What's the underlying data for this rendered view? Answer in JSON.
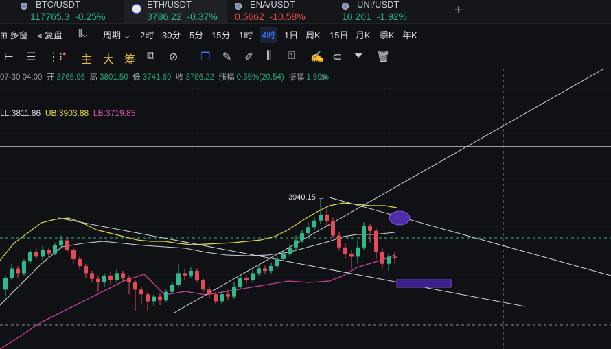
{
  "tabs": [
    {
      "pair": "BTC/USDT",
      "price": "117765.3",
      "change": "-0.25%",
      "dir": "up"
    },
    {
      "pair": "ETH/USDT",
      "price": "3786.22",
      "change": "-0.37%",
      "dir": "up"
    },
    {
      "pair": "ENA/USDT",
      "price": "0.5662",
      "change": "-10.58%",
      "dir": "down"
    },
    {
      "pair": "UNI/USDT",
      "price": "10.261",
      "change": "-1.92%",
      "dir": "up"
    }
  ],
  "add_tab": "+",
  "toolbar": {
    "multi_window": "多窗",
    "replay": "复盘",
    "period": "周期",
    "intervals": [
      "2时",
      "30分",
      "5分",
      "15分",
      "1时",
      "4时",
      "1日",
      "周K",
      "15日",
      "月K",
      "季K",
      "年K"
    ],
    "active_interval": "4时"
  },
  "tools": {
    "main": "主",
    "big": "大",
    "chip": "筹"
  },
  "ohlc": {
    "time": "07-30 04:00",
    "open_label": "开",
    "open": "3765.96",
    "high_label": "高",
    "high": "3801.50",
    "low_label": "低",
    "low": "3741.69",
    "close_label": "收",
    "close": "3786.22",
    "change_label": "涨幅",
    "change": "0.55%(20.54)",
    "amp_label": "振幅",
    "amp": "1.59%"
  },
  "boll": {
    "mid": "LL:3811.86",
    "ub": "UB:3903.88",
    "lb": "LB:3719.85"
  },
  "chart_data": {
    "type": "candlestick",
    "high_marker": "3940.15 →",
    "candles": [
      [
        3745,
        3770,
        3730,
        3775
      ],
      [
        3770,
        3790,
        3765,
        3800
      ],
      [
        3790,
        3780,
        3770,
        3795
      ],
      [
        3780,
        3805,
        3775,
        3810
      ],
      [
        3805,
        3825,
        3800,
        3830
      ],
      [
        3825,
        3815,
        3810,
        3832
      ],
      [
        3815,
        3830,
        3808,
        3838
      ],
      [
        3830,
        3822,
        3815,
        3835
      ],
      [
        3822,
        3840,
        3818,
        3845
      ],
      [
        3840,
        3850,
        3832,
        3860
      ],
      [
        3850,
        3830,
        3825,
        3855
      ],
      [
        3830,
        3810,
        3800,
        3835
      ],
      [
        3810,
        3795,
        3788,
        3815
      ],
      [
        3795,
        3780,
        3770,
        3800
      ],
      [
        3780,
        3768,
        3760,
        3785
      ],
      [
        3768,
        3760,
        3740,
        3775
      ],
      [
        3760,
        3775,
        3750,
        3780
      ],
      [
        3775,
        3765,
        3755,
        3782
      ],
      [
        3765,
        3780,
        3760,
        3788
      ],
      [
        3780,
        3770,
        3762,
        3785
      ],
      [
        3770,
        3760,
        3735,
        3775
      ],
      [
        3760,
        3745,
        3700,
        3765
      ],
      [
        3745,
        3735,
        3715,
        3750
      ],
      [
        3735,
        3720,
        3700,
        3740
      ],
      [
        3720,
        3730,
        3710,
        3735
      ],
      [
        3730,
        3722,
        3712,
        3738
      ],
      [
        3722,
        3740,
        3718,
        3745
      ],
      [
        3740,
        3755,
        3735,
        3762
      ],
      [
        3755,
        3780,
        3750,
        3800
      ],
      [
        3780,
        3775,
        3765,
        3790
      ],
      [
        3775,
        3785,
        3770,
        3792
      ],
      [
        3785,
        3765,
        3760,
        3790
      ],
      [
        3765,
        3745,
        3740,
        3770
      ],
      [
        3745,
        3735,
        3728,
        3750
      ],
      [
        3735,
        3720,
        3715,
        3740
      ],
      [
        3720,
        3735,
        3715,
        3742
      ],
      [
        3735,
        3730,
        3722,
        3745
      ],
      [
        3730,
        3750,
        3725,
        3760
      ],
      [
        3750,
        3770,
        3745,
        3778
      ],
      [
        3770,
        3765,
        3758,
        3776
      ],
      [
        3765,
        3780,
        3760,
        3790
      ],
      [
        3780,
        3790,
        3775,
        3798
      ],
      [
        3790,
        3785,
        3778,
        3796
      ],
      [
        3785,
        3795,
        3780,
        3802
      ],
      [
        3795,
        3810,
        3790,
        3815
      ],
      [
        3810,
        3820,
        3805,
        3830
      ],
      [
        3820,
        3835,
        3815,
        3842
      ],
      [
        3835,
        3850,
        3830,
        3860
      ],
      [
        3850,
        3865,
        3845,
        3872
      ],
      [
        3865,
        3878,
        3860,
        3888
      ],
      [
        3878,
        3892,
        3872,
        3900
      ],
      [
        3892,
        3905,
        3885,
        3940
      ],
      [
        3905,
        3890,
        3880,
        3918
      ],
      [
        3890,
        3860,
        3855,
        3898
      ],
      [
        3860,
        3835,
        3828,
        3868
      ],
      [
        3835,
        3820,
        3810,
        3845
      ],
      [
        3820,
        3815,
        3790,
        3830
      ],
      [
        3815,
        3835,
        3800,
        3850
      ],
      [
        3835,
        3880,
        3830,
        3888
      ],
      [
        3880,
        3870,
        3845,
        3885
      ],
      [
        3870,
        3825,
        3810,
        3875
      ],
      [
        3825,
        3800,
        3790,
        3835
      ],
      [
        3800,
        3815,
        3785,
        3822
      ],
      [
        3815,
        3812,
        3800,
        3825
      ]
    ]
  }
}
